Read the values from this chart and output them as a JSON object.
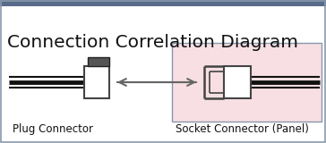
{
  "title": "Connection Correlation Diagram",
  "title_fontsize": 14.5,
  "plug_label": "Plug Connector",
  "socket_label": "Socket Connector (Panel)",
  "label_fontsize": 8.5,
  "bg_color": "#ffffff",
  "top_border_color": "#5a6a8a",
  "border_color": "#8898aa",
  "socket_bg_color": "#f7dfe3",
  "connector_color": "#444444",
  "wire_color": "#111111",
  "arrow_color": "#666666",
  "notch_color": "#222222"
}
